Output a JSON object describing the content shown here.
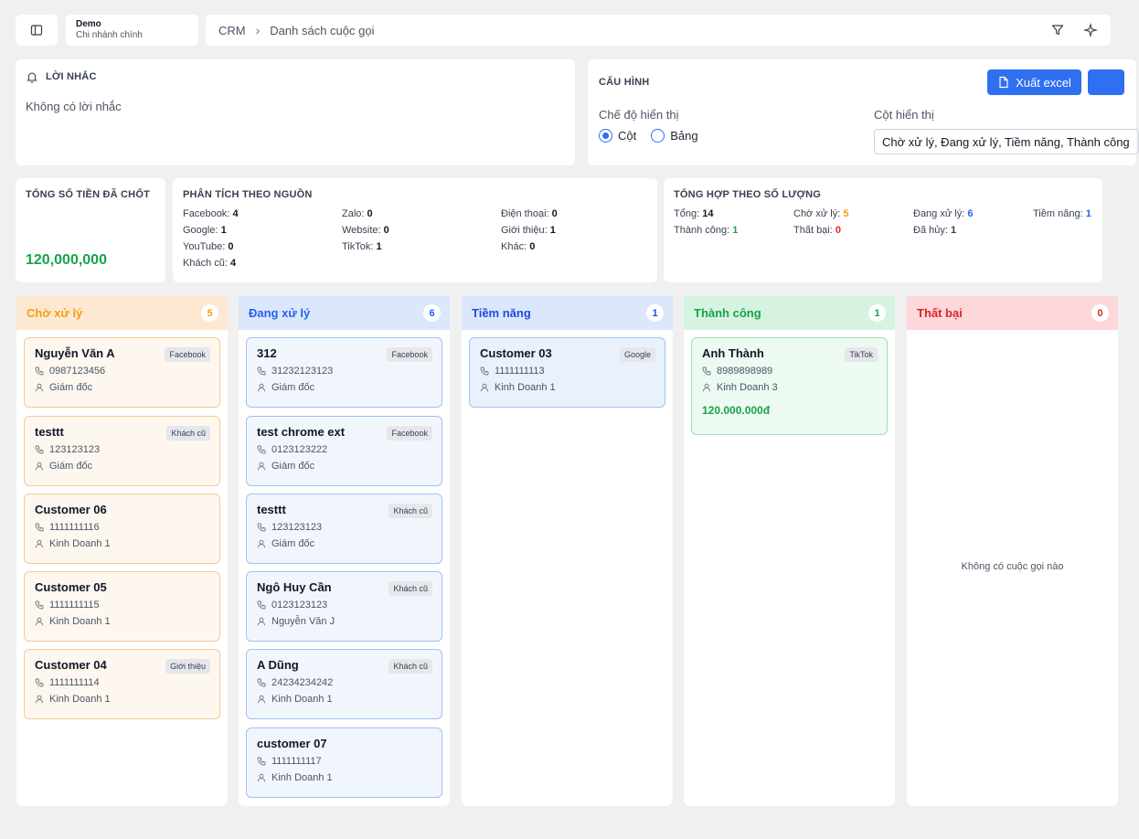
{
  "branch": {
    "name": "Demo",
    "sub": "Chi nhánh chính"
  },
  "breadcrumb": {
    "root": "CRM",
    "current": "Danh sách cuộc gọi"
  },
  "reminder": {
    "title": "LỜI NHẮC",
    "empty": "Không có lời nhắc"
  },
  "config": {
    "title": "CẤU HÌNH",
    "export_label": "Xuất excel",
    "mode_label": "Chế độ hiển thị",
    "mode_options": [
      "Cột",
      "Bảng"
    ],
    "mode_selected": "Cột",
    "columns_label": "Cột hiển thị",
    "columns_value": "Chờ xử lý, Đang xử lý, Tiềm năng, Thành công"
  },
  "total": {
    "title": "TỔNG SỐ TIỀN ĐÃ CHỐT",
    "amount": "120,000,000"
  },
  "source": {
    "title": "PHÂN TÍCH THEO NGUỒN",
    "items": [
      {
        "label": "Facebook:",
        "value": "4"
      },
      {
        "label": "Zalo:",
        "value": "0"
      },
      {
        "label": "Điện thoại:",
        "value": "0"
      },
      {
        "label": "Google:",
        "value": "1"
      },
      {
        "label": "Website:",
        "value": "0"
      },
      {
        "label": "Giới thiệu:",
        "value": "1"
      },
      {
        "label": "YouTube:",
        "value": "0"
      },
      {
        "label": "TikTok:",
        "value": "1"
      },
      {
        "label": "Khác:",
        "value": "0"
      },
      {
        "label": "Khách cũ:",
        "value": "4"
      }
    ]
  },
  "summary": {
    "title": "TỔNG HỢP THEO SỐ LƯỢNG",
    "items": [
      {
        "label": "Tổng:",
        "value": "14",
        "color": "#111827"
      },
      {
        "label": "Chờ xử lý:",
        "value": "5",
        "color": "#f59e0b"
      },
      {
        "label": "Đang xử lý:",
        "value": "6",
        "color": "#2563eb"
      },
      {
        "label": "Tiềm năng:",
        "value": "1",
        "color": "#2563eb"
      },
      {
        "label": "Thành công:",
        "value": "1",
        "color": "#16a34a"
      },
      {
        "label": "Thất bại:",
        "value": "0",
        "color": "#dc2626"
      },
      {
        "label": "Đã hủy:",
        "value": "1",
        "color": "#374151"
      }
    ]
  },
  "columns": [
    {
      "title": "Chờ xử lý",
      "count": "5",
      "color": "#f59e0b",
      "head_bg": "#fde9d2",
      "card_bg": "#fdf7ef",
      "card_border": "#f7c992",
      "cards": [
        {
          "name": "Nguyễn Văn A",
          "tag": "Facebook",
          "phone": "0987123456",
          "person": "Giám đốc"
        },
        {
          "name": "testtt",
          "tag": "Khách cũ",
          "phone": "123123123",
          "person": "Giám đốc"
        },
        {
          "name": "Customer 06",
          "tag": "",
          "phone": "1111111116",
          "person": "Kinh Doanh 1"
        },
        {
          "name": "Customer 05",
          "tag": "",
          "phone": "1111111115",
          "person": "Kinh Doanh 1"
        },
        {
          "name": "Customer 04",
          "tag": "Giới thiệu",
          "phone": "1111111114",
          "person": "Kinh Doanh 1"
        }
      ]
    },
    {
      "title": "Đang xử lý",
      "count": "6",
      "color": "#2563eb",
      "head_bg": "#dbe7fb",
      "card_bg": "#f1f6fd",
      "card_border": "#9ec2f3",
      "cards": [
        {
          "name": "312",
          "tag": "Facebook",
          "phone": "31232123123",
          "person": "Giám đốc"
        },
        {
          "name": "test chrome ext",
          "tag": "Facebook",
          "phone": "0123123222",
          "person": "Giám đốc"
        },
        {
          "name": "testtt",
          "tag": "Khách cũ",
          "phone": "123123123",
          "person": "Giám đốc"
        },
        {
          "name": "Ngô Huy Cần",
          "tag": "Khách cũ",
          "phone": "0123123123",
          "person": "Nguyễn Văn J"
        },
        {
          "name": "A Dũng",
          "tag": "Khách cũ",
          "phone": "24234234242",
          "person": "Kinh Doanh 1"
        },
        {
          "name": "customer 07",
          "tag": "",
          "phone": "1111111117",
          "person": "Kinh Doanh 1"
        }
      ]
    },
    {
      "title": "Tiềm năng",
      "count": "1",
      "color": "#1d4ed8",
      "head_bg": "#dbe7fb",
      "card_bg": "#eaf1fc",
      "card_border": "#9ec2f3",
      "cards": [
        {
          "name": "Customer 03",
          "tag": "Google",
          "phone": "1111111113",
          "person": "Kinh Doanh 1"
        }
      ]
    },
    {
      "title": "Thành công",
      "count": "1",
      "color": "#16a34a",
      "head_bg": "#d5f3e0",
      "card_bg": "#ecfaf1",
      "card_border": "#9fe0b6",
      "cards": [
        {
          "name": "Anh Thành",
          "tag": "TikTok",
          "phone": "8989898989",
          "person": "Kinh Doanh 3",
          "money": "120.000.000đ"
        }
      ]
    },
    {
      "title": "Thất bại",
      "count": "0",
      "color": "#dc2626",
      "head_bg": "#fdd7da",
      "card_bg": "#fff",
      "card_border": "#f5b5ba",
      "cards": [],
      "empty": "Không có cuộc gọi nào"
    }
  ]
}
